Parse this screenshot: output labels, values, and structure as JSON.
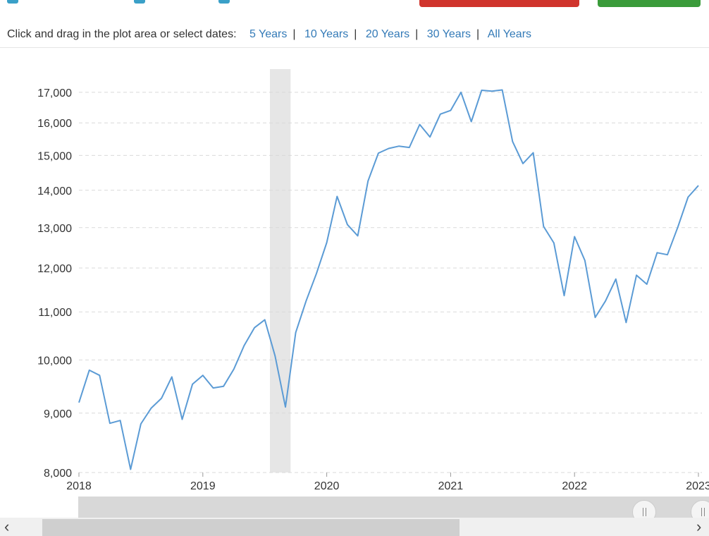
{
  "toolbar": {
    "prompt": "Click and drag in the plot area or select dates:",
    "ranges": [
      "5 Years",
      "10 Years",
      "20 Years",
      "30 Years",
      "All Years"
    ],
    "separator": "|"
  },
  "colors": {
    "line": "#5b9bd5",
    "recession": "#e6e6e6",
    "link": "#337ab7"
  },
  "chart_data": {
    "type": "line",
    "title": "",
    "xlabel": "",
    "ylabel": "",
    "y_scale": "log",
    "ylim": [
      8000,
      17800
    ],
    "xlim": [
      "2018-01",
      "2023-01"
    ],
    "yticks": [
      8000,
      9000,
      10000,
      11000,
      12000,
      13000,
      14000,
      15000,
      16000,
      17000
    ],
    "ytick_labels": [
      "8,000",
      "9,000",
      "10,000",
      "11,000",
      "12,000",
      "13,000",
      "14,000",
      "15,000",
      "16,000",
      "17,000"
    ],
    "xticks": [
      "2018",
      "2019",
      "2020",
      "2021",
      "2022",
      "2023"
    ],
    "grid": true,
    "recession": [
      "2019-08",
      "2019-09"
    ],
    "x": [
      "2018-01",
      "2018-02",
      "2018-03",
      "2018-04",
      "2018-05",
      "2018-06",
      "2018-07",
      "2018-08",
      "2018-09",
      "2018-10",
      "2018-11",
      "2018-12",
      "2019-01",
      "2019-02",
      "2019-03",
      "2019-04",
      "2019-05",
      "2019-06",
      "2019-07",
      "2019-08",
      "2019-09",
      "2019-10",
      "2019-11",
      "2019-12",
      "2020-01",
      "2020-02",
      "2020-03",
      "2020-04",
      "2020-05",
      "2020-06",
      "2020-07",
      "2020-08",
      "2020-09",
      "2020-10",
      "2020-11",
      "2020-12",
      "2021-01",
      "2021-02",
      "2021-03",
      "2021-04",
      "2021-05",
      "2021-06",
      "2021-07",
      "2021-08",
      "2021-09",
      "2021-10",
      "2021-11",
      "2021-12",
      "2022-01",
      "2022-02",
      "2022-03",
      "2022-04",
      "2022-05",
      "2022-06",
      "2022-07",
      "2022-08",
      "2022-09",
      "2022-10",
      "2022-11",
      "2022-12",
      "2023-01"
    ],
    "values": [
      9190,
      9800,
      9700,
      8820,
      8870,
      8050,
      8810,
      9090,
      9270,
      9670,
      8890,
      9530,
      9700,
      9460,
      9490,
      9820,
      10290,
      10660,
      10830,
      10080,
      9110,
      10560,
      11240,
      11870,
      12620,
      13830,
      13080,
      12790,
      14260,
      15070,
      15210,
      15280,
      15240,
      15950,
      15560,
      16280,
      16400,
      17000,
      16040,
      17070,
      17040,
      17080,
      15420,
      14760,
      15080,
      13030,
      12610,
      11360,
      12770,
      12180,
      10880,
      11240,
      11740,
      10770,
      11830,
      11620,
      12370,
      12320,
      13010,
      13810,
      14130
    ]
  }
}
